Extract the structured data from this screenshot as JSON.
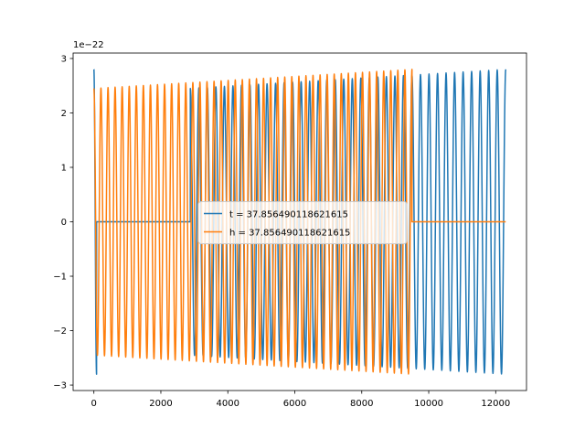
{
  "chart_data": {
    "type": "line",
    "title": "",
    "xlabel": "",
    "ylabel": "",
    "offset_text": "1e−22",
    "xlim": [
      -620,
      12920
    ],
    "ylim": [
      -3.1,
      3.1
    ],
    "x_ticks": [
      0,
      2000,
      4000,
      6000,
      8000,
      10000,
      12000
    ],
    "y_ticks": [
      -3,
      -2,
      -1,
      0,
      1,
      2,
      3
    ],
    "x_tick_labels": [
      "0",
      "2000",
      "4000",
      "6000",
      "8000",
      "10000",
      "12000"
    ],
    "y_tick_labels": [
      "−3",
      "−2",
      "−1",
      "0",
      "1",
      "2",
      "3"
    ],
    "grid": false,
    "legend_position": "center",
    "series": [
      {
        "name": "t = 37.856490118621615",
        "color": "#1f77b4",
        "segments": [
          {
            "x_start": 0,
            "x_end": 80,
            "amplitude_start": 2.8,
            "amplitude_end": 2.8,
            "cycles": 0.5
          },
          {
            "x_start": 80,
            "x_end": 2880,
            "amplitude_start": 0,
            "amplitude_end": 0,
            "cycles": 0
          },
          {
            "x_start": 2880,
            "x_end": 12300,
            "amplitude_start": 2.45,
            "amplitude_end": 2.8,
            "cycles": 37
          }
        ]
      },
      {
        "name": "h = 37.856490118621615",
        "color": "#ff7f0e",
        "segments": [
          {
            "x_start": 0,
            "x_end": 9500,
            "amplitude_start": 2.45,
            "amplitude_end": 2.8,
            "cycles": 45
          },
          {
            "x_start": 9500,
            "x_end": 12300,
            "amplitude_start": 0,
            "amplitude_end": 0,
            "cycles": 0
          }
        ]
      }
    ]
  }
}
